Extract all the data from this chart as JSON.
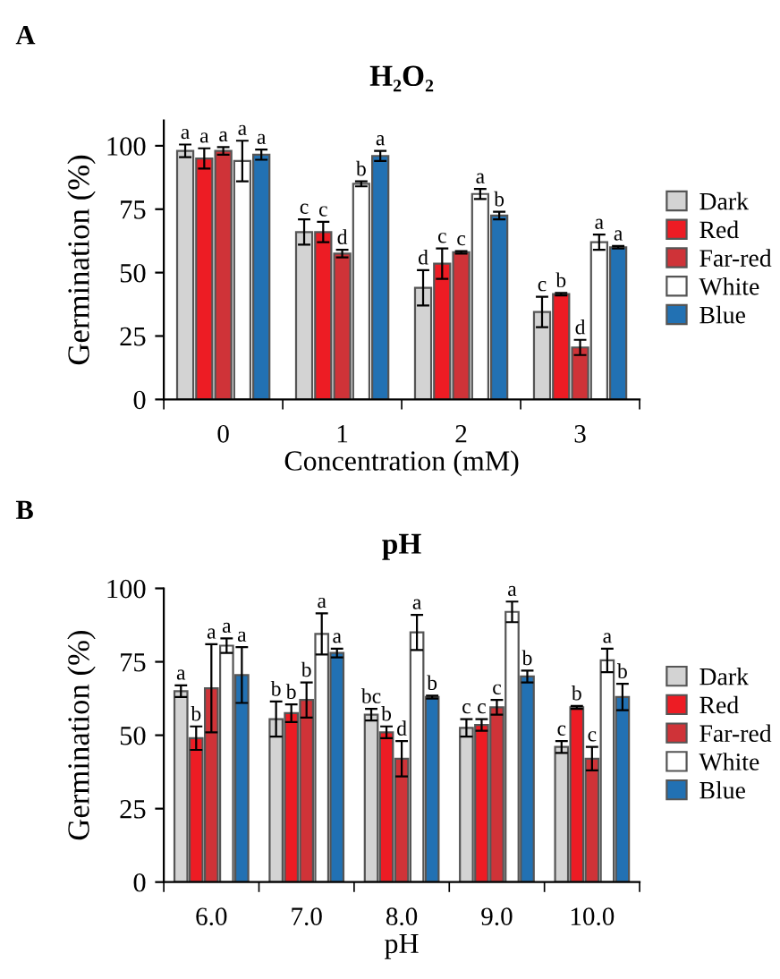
{
  "chart_data": [
    {
      "type": "bar",
      "title": "H₂O₂",
      "xlabel": "Concentration (mM)",
      "ylabel": "Germination (%)",
      "annotations": [
        "A"
      ],
      "categories": [
        "0",
        "1",
        "2",
        "3"
      ],
      "ylim": [
        0,
        110
      ],
      "yticks": [
        0,
        25,
        50,
        75,
        100
      ],
      "grid": false,
      "legend": "right",
      "series": [
        {
          "name": "Dark",
          "color": "#d3d3d3",
          "values": [
            98,
            66,
            44,
            34.5
          ],
          "errors": [
            2.5,
            5,
            7,
            6
          ],
          "value_labels": [
            "a",
            "c",
            "d",
            "c"
          ]
        },
        {
          "name": "Red",
          "color": "#ed1c24",
          "values": [
            95,
            66,
            53.5,
            41.5
          ],
          "errors": [
            4,
            4,
            6,
            0.5
          ],
          "value_labels": [
            "a",
            "c",
            "c",
            "b"
          ]
        },
        {
          "name": "Far-red",
          "color": "#cf3338",
          "values": [
            98,
            57.5,
            58,
            20.5
          ],
          "errors": [
            1.5,
            1.5,
            0.5,
            3
          ],
          "value_labels": [
            "a",
            "d",
            "c",
            "d"
          ]
        },
        {
          "name": "White",
          "color": "#ffffff",
          "values": [
            94,
            85,
            81,
            62
          ],
          "errors": [
            8,
            1,
            2,
            3
          ],
          "value_labels": [
            "a",
            "b",
            "a",
            "a"
          ]
        },
        {
          "name": "Blue",
          "color": "#2271b3",
          "values": [
            96.5,
            96,
            72.5,
            60
          ],
          "errors": [
            2,
            2,
            1.5,
            0.5
          ],
          "value_labels": [
            "a",
            "a",
            "b",
            "a"
          ]
        }
      ]
    },
    {
      "type": "bar",
      "title": "pH",
      "xlabel": "pH",
      "ylabel": "Germination (%)",
      "annotations": [
        "B"
      ],
      "categories": [
        "6.0",
        "7.0",
        "8.0",
        "9.0",
        "10.0"
      ],
      "ylim": [
        0,
        100
      ],
      "yticks": [
        0,
        25,
        50,
        75,
        100
      ],
      "grid": false,
      "legend": "right",
      "series": [
        {
          "name": "Dark",
          "color": "#d3d3d3",
          "values": [
            65,
            55.5,
            57,
            52.5,
            46
          ],
          "errors": [
            2,
            6,
            2,
            3,
            2
          ],
          "value_labels": [
            "a",
            "b",
            "bc",
            "c",
            "c"
          ]
        },
        {
          "name": "Red",
          "color": "#ed1c24",
          "values": [
            49,
            57.5,
            51,
            53.5,
            59.5
          ],
          "errors": [
            4,
            3,
            2,
            2,
            0.5
          ],
          "value_labels": [
            "b",
            "b",
            "b",
            "c",
            "b"
          ]
        },
        {
          "name": "Far-red",
          "color": "#cf3338",
          "values": [
            66,
            62,
            42,
            59.5,
            42
          ],
          "errors": [
            15,
            6,
            6,
            2.5,
            4
          ],
          "value_labels": [
            "a",
            "b",
            "d",
            "c",
            "c"
          ]
        },
        {
          "name": "White",
          "color": "#ffffff",
          "values": [
            80.5,
            84.5,
            85,
            92,
            75.5
          ],
          "errors": [
            2.5,
            7,
            6,
            3.5,
            4
          ],
          "value_labels": [
            "a",
            "a",
            "a",
            "a",
            "a"
          ]
        },
        {
          "name": "Blue",
          "color": "#2271b3",
          "values": [
            70.5,
            78,
            63,
            70,
            63
          ],
          "errors": [
            9.5,
            1.5,
            0.5,
            2,
            4.5
          ],
          "value_labels": [
            "a",
            "a",
            "b",
            "b",
            "b"
          ]
        }
      ]
    }
  ]
}
